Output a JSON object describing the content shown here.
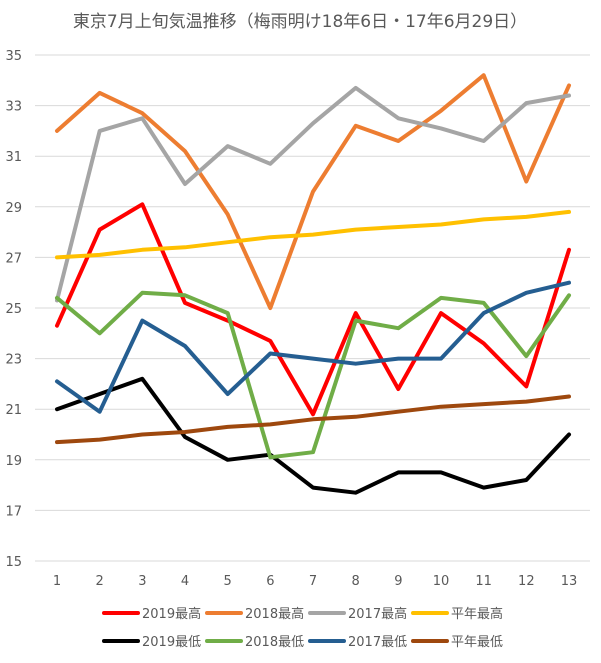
{
  "chart_data": {
    "type": "line",
    "title": "東京7月上旬気温推移（梅雨明け18年6日・17年6月29日）",
    "xlabel": "",
    "ylabel": "",
    "x": [
      1,
      2,
      3,
      4,
      5,
      6,
      7,
      8,
      9,
      10,
      11,
      12,
      13
    ],
    "ylim": [
      15,
      35
    ],
    "yticks": [
      15,
      17,
      19,
      21,
      23,
      25,
      27,
      29,
      31,
      33,
      35
    ],
    "grid": true,
    "legend_position": "bottom",
    "series": [
      {
        "name": "2019最高",
        "color": "#ff0000",
        "values": [
          24.3,
          28.1,
          29.1,
          25.2,
          24.5,
          23.7,
          20.8,
          24.8,
          21.8,
          24.8,
          23.6,
          21.9,
          27.3
        ]
      },
      {
        "name": "2018最高",
        "color": "#ed7d31",
        "values": [
          32.0,
          33.5,
          32.7,
          31.2,
          28.7,
          25.0,
          29.6,
          32.2,
          31.6,
          32.8,
          34.2,
          30.0,
          33.8
        ]
      },
      {
        "name": "2017最高",
        "color": "#a5a5a5",
        "values": [
          25.3,
          32.0,
          32.5,
          29.9,
          31.4,
          30.7,
          32.3,
          33.7,
          32.5,
          32.1,
          31.6,
          33.1,
          33.4
        ]
      },
      {
        "name": "平年最高",
        "color": "#ffc000",
        "values": [
          27.0,
          27.1,
          27.3,
          27.4,
          27.6,
          27.8,
          27.9,
          28.1,
          28.2,
          28.3,
          28.5,
          28.6,
          28.8
        ]
      },
      {
        "name": "2019最低",
        "color": "#000000",
        "values": [
          21.0,
          21.6,
          22.2,
          19.9,
          19.0,
          19.2,
          17.9,
          17.7,
          18.5,
          18.5,
          17.9,
          18.2,
          20.0
        ]
      },
      {
        "name": "2018最低",
        "color": "#70ad47",
        "values": [
          25.4,
          24.0,
          25.6,
          25.5,
          24.8,
          19.1,
          19.3,
          24.5,
          24.2,
          25.4,
          25.2,
          23.1,
          25.5
        ]
      },
      {
        "name": "2017最低",
        "color": "#255e91",
        "values": [
          22.1,
          20.9,
          24.5,
          23.5,
          21.6,
          23.2,
          23.0,
          22.8,
          23.0,
          23.0,
          24.8,
          25.6,
          26.0
        ]
      },
      {
        "name": "平年最低",
        "color": "#9e480e",
        "values": [
          19.7,
          19.8,
          20.0,
          20.1,
          20.3,
          20.4,
          20.6,
          20.7,
          20.9,
          21.1,
          21.2,
          21.3,
          21.5
        ]
      }
    ]
  }
}
